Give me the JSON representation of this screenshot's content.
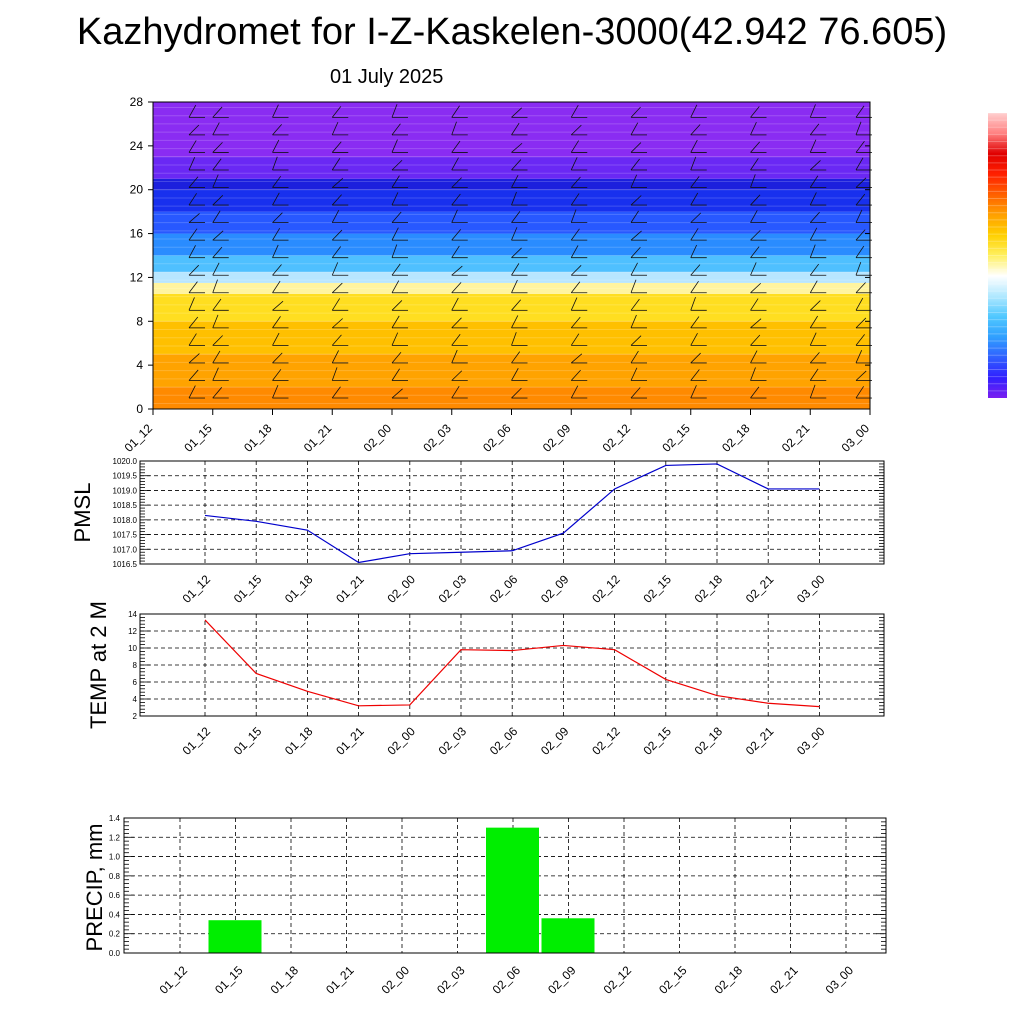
{
  "title": "Kazhydromet for I-Z-Kaskelen-3000(42.942 76.605)",
  "subtitle": "01 July 2025",
  "time_labels": [
    "01_12",
    "01_15",
    "01_18",
    "01_21",
    "02_00",
    "02_03",
    "02_06",
    "02_09",
    "02_12",
    "02_15",
    "02_18",
    "02_21",
    "03_00"
  ],
  "chart_data": [
    {
      "type": "heatmap",
      "name": "cross-section",
      "x": [
        "01_12",
        "01_15",
        "01_18",
        "01_21",
        "02_00",
        "02_03",
        "02_06",
        "02_09",
        "02_12",
        "02_15",
        "02_18",
        "02_21",
        "03_00"
      ],
      "ylim": [
        0,
        28
      ],
      "yticks": [
        0,
        4,
        8,
        12,
        16,
        20,
        24,
        28
      ],
      "color_bands": [
        {
          "from": 0,
          "to": 2,
          "color": "#ff8a00"
        },
        {
          "from": 2,
          "to": 5,
          "color": "#ffa300"
        },
        {
          "from": 5,
          "to": 8,
          "color": "#ffc000"
        },
        {
          "from": 8,
          "to": 10.5,
          "color": "#ffde20"
        },
        {
          "from": 10.5,
          "to": 11.5,
          "color": "#fff4a0"
        },
        {
          "from": 11.5,
          "to": 12.5,
          "color": "#b8e6ff"
        },
        {
          "from": 12.5,
          "to": 14,
          "color": "#4fc0ff"
        },
        {
          "from": 14,
          "to": 16,
          "color": "#2a8cff"
        },
        {
          "from": 16,
          "to": 18,
          "color": "#2858ff"
        },
        {
          "from": 18,
          "to": 20,
          "color": "#1830ee"
        },
        {
          "from": 20,
          "to": 21,
          "color": "#1c20dd"
        },
        {
          "from": 21,
          "to": 23,
          "color": "#6a28f4"
        },
        {
          "from": 23,
          "to": 28,
          "color": "#8a2cf2"
        }
      ],
      "colorbar": [
        "#7a1ff0",
        "#3020ff",
        "#3060ff",
        "#30a0ff",
        "#50c8ff",
        "#b0e8ff",
        "#ffffff",
        "#fff060",
        "#ffd000",
        "#ffa000",
        "#ff6000",
        "#ff2000",
        "#e00000",
        "#ff8080",
        "#ffd0d0"
      ],
      "grid": false
    },
    {
      "type": "line",
      "name": "pmsl",
      "ylabel": "PMSL",
      "x": [
        "01_12",
        "01_15",
        "01_18",
        "01_21",
        "02_00",
        "02_03",
        "02_06",
        "02_09",
        "02_12",
        "02_15",
        "02_18",
        "02_21",
        "03_00"
      ],
      "values": [
        1018.15,
        1017.95,
        1017.65,
        1016.55,
        1016.85,
        1016.9,
        1016.95,
        1017.55,
        1019.05,
        1019.85,
        1019.9,
        1019.05,
        1019.05
      ],
      "ylim": [
        1016.5,
        1020.0
      ],
      "yticks": [
        "1016.5",
        "1017.0",
        "1017.5",
        "1018.0",
        "1018.5",
        "1019.0",
        "1019.5",
        "1020.0"
      ],
      "color": "#0000cc",
      "grid": true
    },
    {
      "type": "line",
      "name": "temp",
      "ylabel": "TEMP at 2 M",
      "x": [
        "01_12",
        "01_15",
        "01_18",
        "01_21",
        "02_00",
        "02_03",
        "02_06",
        "02_09",
        "02_12",
        "02_15",
        "02_18",
        "02_21",
        "03_00"
      ],
      "values": [
        13.3,
        7.0,
        4.9,
        3.2,
        3.3,
        9.8,
        9.7,
        10.3,
        9.8,
        6.3,
        4.4,
        3.5,
        3.1
      ],
      "ylim": [
        2,
        14
      ],
      "yticks": [
        "2",
        "4",
        "6",
        "8",
        "10",
        "12",
        "14"
      ],
      "color": "#ee0000",
      "grid": true
    },
    {
      "type": "bar",
      "name": "precip",
      "ylabel": "PRECIP, mm",
      "categories": [
        "01_12",
        "01_15",
        "01_18",
        "01_21",
        "02_00",
        "02_03",
        "02_06",
        "02_09",
        "02_12",
        "02_15",
        "02_18",
        "02_21",
        "03_00"
      ],
      "values": [
        0,
        0.34,
        0,
        0,
        0,
        0,
        1.3,
        0.36,
        0,
        0,
        0,
        0,
        0
      ],
      "ylim": [
        0,
        1.4
      ],
      "yticks": [
        "0.0",
        "0.2",
        "0.4",
        "0.6",
        "0.8",
        "1.0",
        "1.2",
        "1.4"
      ],
      "color": "#00ee00",
      "grid": true
    }
  ]
}
